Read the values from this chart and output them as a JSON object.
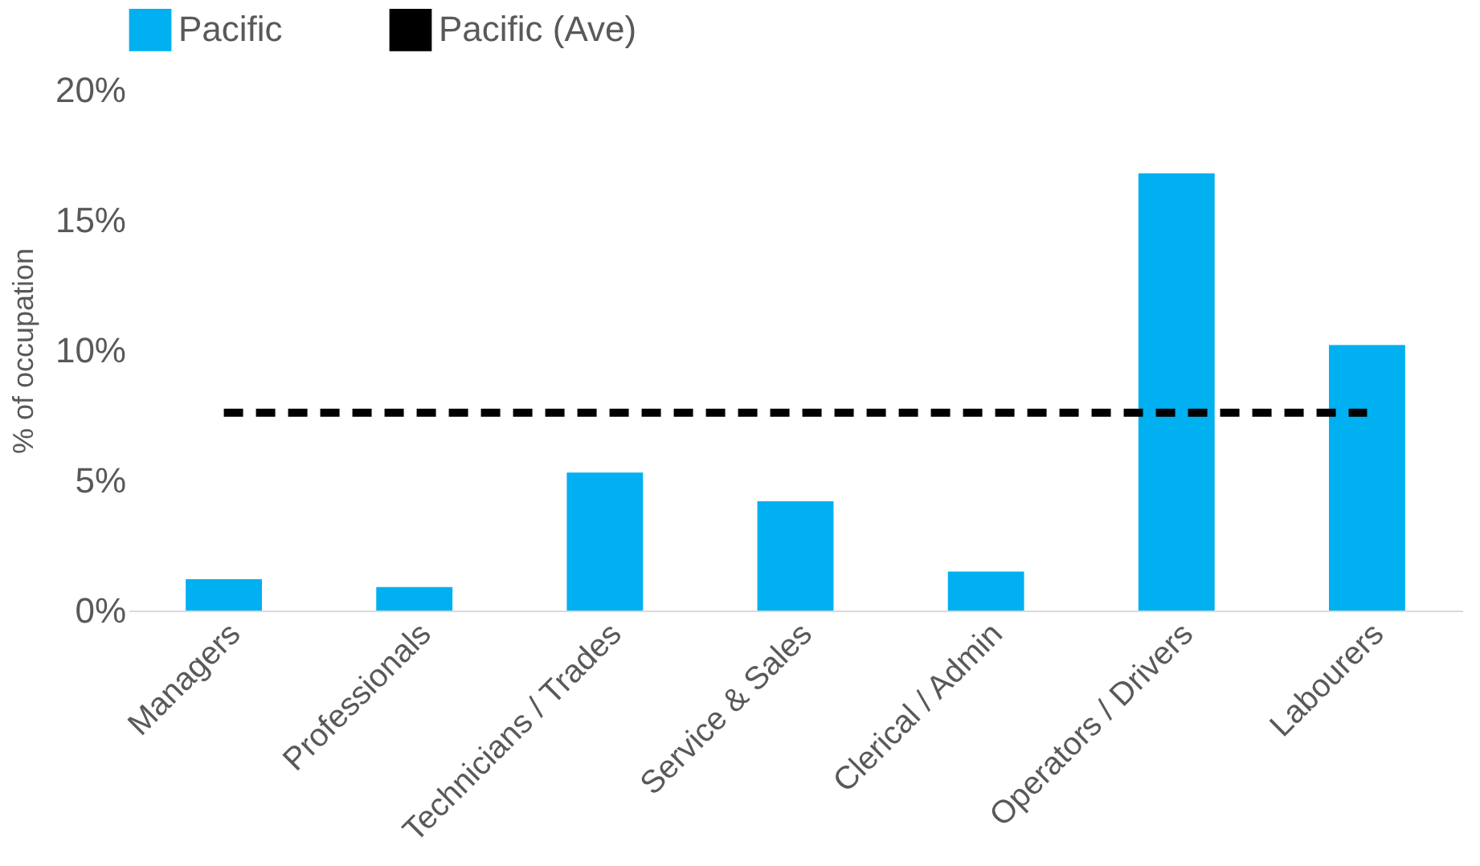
{
  "chart_data": {
    "type": "bar",
    "ylabel": "% of occupation",
    "categories": [
      "Managers",
      "Professionals",
      "Technicians / Trades",
      "Service & Sales",
      "Clerical / Admin",
      "Operators / Drivers",
      "Labourers"
    ],
    "series": [
      {
        "name": "Pacific",
        "color": "#00b0f0",
        "values": [
          1.2,
          0.9,
          5.3,
          4.2,
          1.5,
          16.8,
          10.2
        ]
      },
      {
        "name": "Pacific (Ave)",
        "type": "line",
        "color": "#000000",
        "line_style": "dashed",
        "values": [
          7.6,
          7.6,
          7.6,
          7.6,
          7.6,
          7.6,
          7.6
        ]
      }
    ],
    "ylim": [
      0,
      20
    ],
    "yticks": [
      {
        "value": 0,
        "label": "0%"
      },
      {
        "value": 5,
        "label": "5%"
      },
      {
        "value": 10,
        "label": "10%"
      },
      {
        "value": 15,
        "label": "15%"
      },
      {
        "value": 20,
        "label": "20%"
      }
    ],
    "grid": false,
    "legend": "top"
  }
}
